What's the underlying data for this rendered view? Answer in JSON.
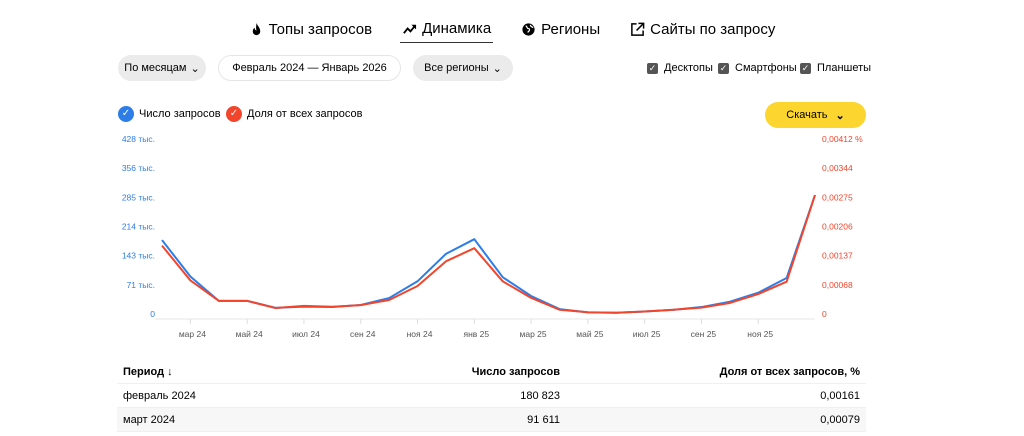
{
  "tabs": [
    {
      "label": "Топы запросов",
      "icon": "fire-icon"
    },
    {
      "label": "Динамика",
      "icon": "trend-icon",
      "active": true
    },
    {
      "label": "Регионы",
      "icon": "globe-icon"
    },
    {
      "label": "Сайты по запросу",
      "icon": "external-link-icon"
    }
  ],
  "filters": {
    "period_type": "По месяцам",
    "date_range": "Февраль 2024 — Январь 2026",
    "region": "Все регионы"
  },
  "devices": [
    {
      "label": "Десктопы",
      "checked": true
    },
    {
      "label": "Смартфоны",
      "checked": true
    },
    {
      "label": "Планшеты",
      "checked": true
    }
  ],
  "legend": [
    {
      "label": "Число запросов",
      "color": "#2d7de8"
    },
    {
      "label": "Доля от всех запросов",
      "color": "#f2452c"
    }
  ],
  "download_label": "Скачать",
  "chart_data": {
    "type": "line",
    "x": [
      "2024-02",
      "2024-03",
      "2024-04",
      "2024-05",
      "2024-06",
      "2024-07",
      "2024-08",
      "2024-09",
      "2024-10",
      "2024-11",
      "2024-12",
      "2025-01",
      "2025-02",
      "2025-03",
      "2025-04",
      "2025-05",
      "2025-06",
      "2025-07",
      "2025-08",
      "2025-09",
      "2025-10",
      "2025-11",
      "2025-12",
      "2026-01"
    ],
    "x_tick_labels": [
      "мар 24",
      "май 24",
      "июл 24",
      "сен 24",
      "ноя 24",
      "янв 25",
      "мар 25",
      "май 25",
      "июл 25",
      "сен 25",
      "ноя 25"
    ],
    "y_left_ticks": [
      "0",
      "71 тыс.",
      "143 тыс.",
      "214 тыс.",
      "285 тыс.",
      "356 тыс.",
      "428 тыс."
    ],
    "y_right_ticks": [
      "0",
      "0,00068",
      "0,00137",
      "0,00206",
      "0,00275",
      "0,00344",
      "0,00412 %"
    ],
    "y_left_range": [
      0,
      428000
    ],
    "y_right_range": [
      0,
      0.00412
    ],
    "series": [
      {
        "name": "Число запросов",
        "axis": "left",
        "color": "#2d7de8",
        "values": [
          180823,
          91611,
          32000,
          32000,
          15000,
          18000,
          17000,
          22000,
          39000,
          80000,
          147000,
          183000,
          90000,
          44000,
          12000,
          4000,
          3000,
          6000,
          10000,
          17000,
          30000,
          52000,
          88000,
          291000
        ]
      },
      {
        "name": "Доля от всех запросов",
        "axis": "right",
        "color": "#f2452c",
        "values": [
          0.00161,
          0.00079,
          0.00031,
          0.00031,
          0.00014,
          0.00019,
          0.00017,
          0.00021,
          0.00033,
          0.00066,
          0.00124,
          0.00155,
          0.00077,
          0.00038,
          0.0001,
          4e-05,
          3e-05,
          6e-05,
          0.0001,
          0.00015,
          0.00026,
          0.00047,
          0.00076,
          0.0028
        ]
      }
    ]
  },
  "table": {
    "headers": [
      "Период ↓",
      "Число запросов",
      "Доля от всех запросов, %"
    ],
    "rows": [
      [
        "февраль 2024",
        "180 823",
        "0,00161"
      ],
      [
        "март 2024",
        "91 611",
        "0,00079"
      ]
    ]
  }
}
